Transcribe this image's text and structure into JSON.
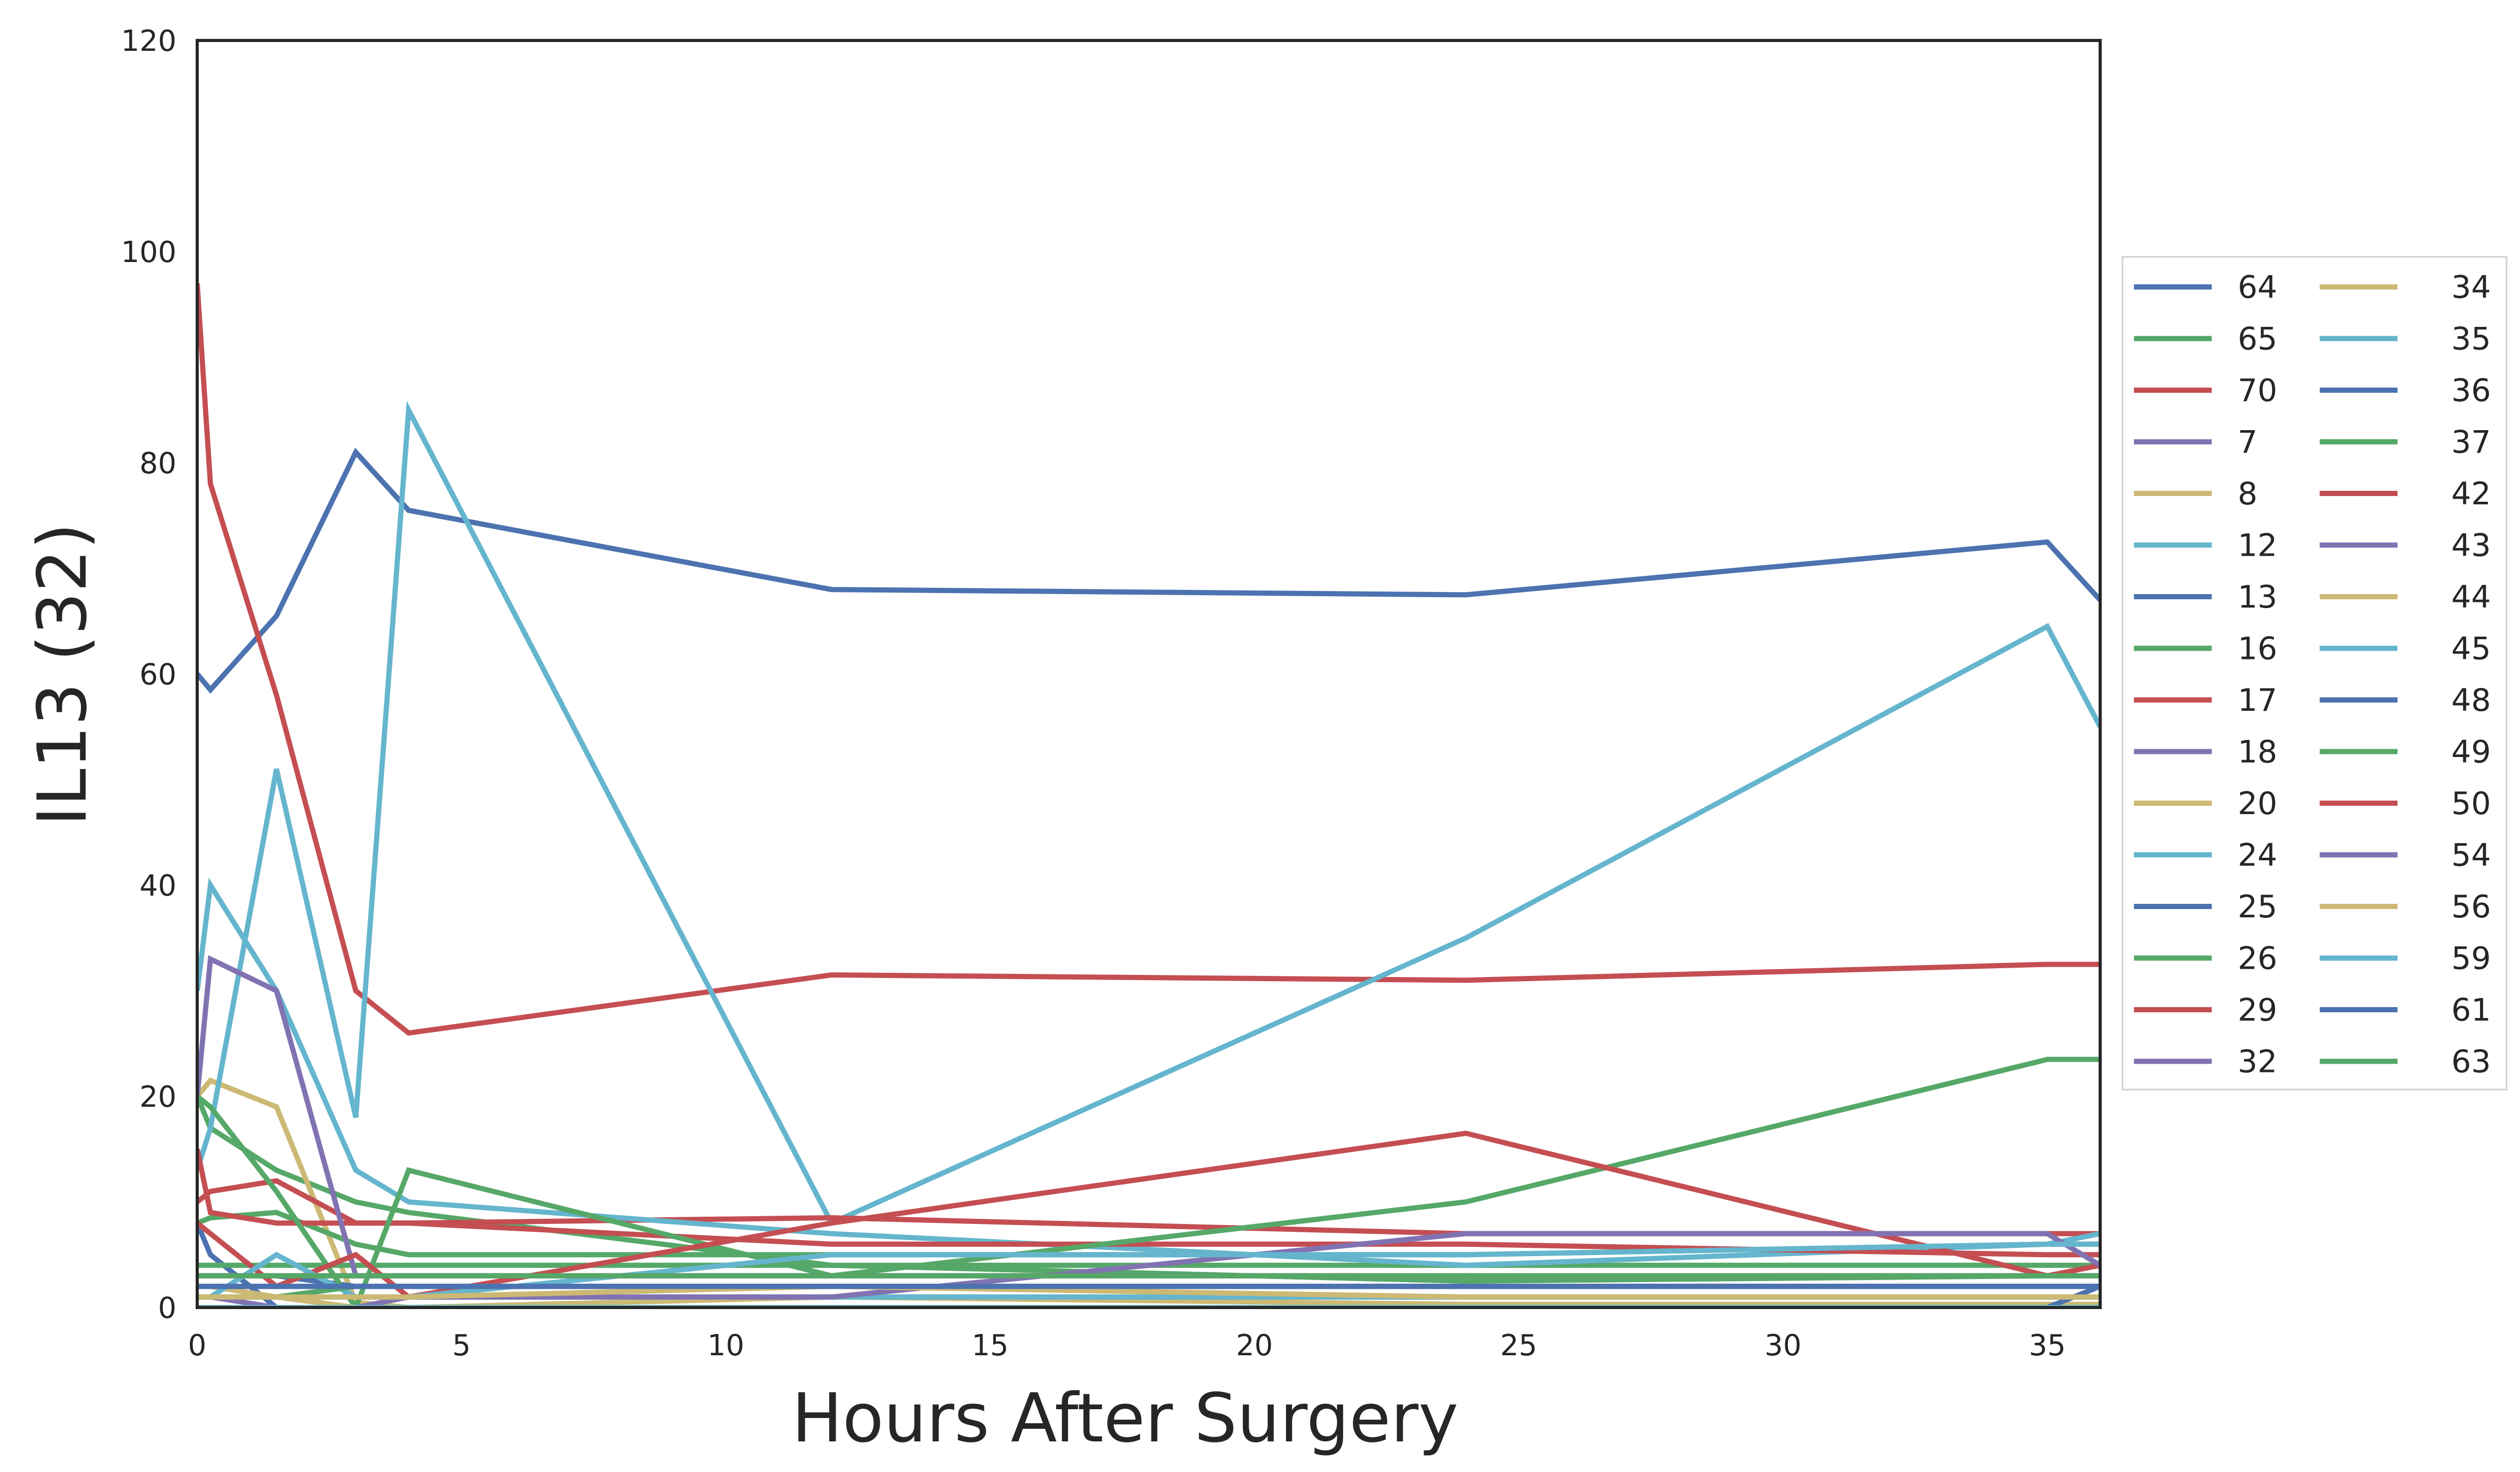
{
  "chart_data": {
    "type": "line",
    "title": "",
    "xlabel": "Hours After Surgery",
    "ylabel": "IL13 (32)",
    "xlim": [
      0,
      36
    ],
    "ylim": [
      0,
      120
    ],
    "xticks": [
      0,
      5,
      10,
      15,
      20,
      25,
      30,
      35
    ],
    "yticks": [
      0,
      20,
      40,
      60,
      80,
      100,
      120
    ],
    "x": [
      0,
      0.25,
      1.5,
      3,
      4,
      12,
      24,
      35,
      36
    ],
    "grid": false,
    "legend": {
      "placement": "right-outside",
      "columns": 2
    },
    "palette": [
      "#4c72b0",
      "#55a868",
      "#c44e52",
      "#8172b2",
      "#ccb974",
      "#64b5cd"
    ],
    "series": [
      {
        "name": "64",
        "color": "#4c72b0",
        "values": [
          60,
          58.5,
          65.5,
          81,
          75.5,
          68,
          67.5,
          72.5,
          67
        ]
      },
      {
        "name": "65",
        "color": "#55a868",
        "values": [
          20,
          17,
          13,
          10,
          9,
          4,
          2.5,
          3,
          3
        ]
      },
      {
        "name": "70",
        "color": "#c44e52",
        "values": [
          97,
          78,
          58,
          30,
          26,
          31.5,
          31,
          32.5,
          32.5
        ]
      },
      {
        "name": "7",
        "color": "#8172b2",
        "values": [
          2,
          2,
          2,
          2,
          2,
          2,
          2,
          2,
          2
        ]
      },
      {
        "name": "8",
        "color": "#ccb974",
        "values": [
          20,
          21.5,
          19,
          0.5,
          0,
          1,
          0.3,
          0.3,
          0.3
        ]
      },
      {
        "name": "12",
        "color": "#64b5cd",
        "values": [
          13,
          17,
          51,
          18,
          85,
          8,
          35,
          64.5,
          55
        ]
      },
      {
        "name": "13",
        "color": "#4c72b0",
        "values": [
          8,
          5,
          0,
          0,
          0,
          0,
          0,
          0,
          0
        ]
      },
      {
        "name": "16",
        "color": "#55a868",
        "values": [
          4,
          4,
          4,
          4,
          4,
          4,
          4,
          4,
          4
        ]
      },
      {
        "name": "17",
        "color": "#c44e52",
        "values": [
          10,
          11,
          12,
          8,
          8,
          8.5,
          7,
          7,
          7
        ]
      },
      {
        "name": "18",
        "color": "#8172b2",
        "values": [
          3,
          3,
          3,
          3,
          3,
          3,
          3,
          3,
          3
        ]
      },
      {
        "name": "20",
        "color": "#ccb974",
        "values": [
          2,
          2,
          1,
          0,
          0,
          0,
          0,
          0,
          0
        ]
      },
      {
        "name": "24",
        "color": "#64b5cd",
        "values": [
          30,
          40,
          30,
          13,
          10,
          7,
          4,
          6,
          7
        ]
      },
      {
        "name": "25",
        "color": "#4c72b0",
        "values": [
          1,
          1,
          1,
          1,
          1,
          1,
          1,
          1,
          1
        ]
      },
      {
        "name": "26",
        "color": "#55a868",
        "values": [
          8,
          8.5,
          9,
          6,
          5,
          5,
          5,
          6,
          6
        ]
      },
      {
        "name": "29",
        "color": "#c44e52",
        "values": [
          15,
          9,
          8,
          8,
          8,
          6,
          6,
          5,
          5
        ]
      },
      {
        "name": "32",
        "color": "#8172b2",
        "values": [
          20,
          33,
          30,
          3,
          3,
          3,
          3,
          3,
          3
        ]
      },
      {
        "name": "34",
        "color": "#ccb974",
        "values": [
          1,
          1,
          1,
          1,
          1,
          1,
          1,
          1,
          1
        ]
      },
      {
        "name": "35",
        "color": "#64b5cd",
        "values": [
          1,
          1,
          1,
          1,
          1,
          1,
          1,
          1,
          1
        ]
      },
      {
        "name": "36",
        "color": "#4c72b0",
        "values": [
          3,
          3,
          3,
          2,
          2,
          2,
          2,
          2,
          2
        ]
      },
      {
        "name": "37",
        "color": "#55a868",
        "values": [
          20,
          19,
          11,
          0,
          13,
          3,
          10,
          23.5,
          23.5
        ]
      },
      {
        "name": "42",
        "color": "#c44e52",
        "values": [
          8,
          7,
          2,
          5,
          1,
          8,
          16.5,
          3,
          4
        ]
      },
      {
        "name": "43",
        "color": "#8172b2",
        "values": [
          1,
          1,
          0,
          0,
          1,
          1,
          7,
          7,
          4
        ]
      },
      {
        "name": "44",
        "color": "#ccb974",
        "values": [
          2,
          2,
          1,
          0,
          0,
          0,
          0,
          0,
          0
        ]
      },
      {
        "name": "45",
        "color": "#64b5cd",
        "values": [
          1,
          1,
          5,
          1,
          1,
          5,
          5,
          6,
          6
        ]
      },
      {
        "name": "48",
        "color": "#4c72b0",
        "values": [
          0,
          0,
          0,
          0,
          0,
          0,
          0,
          0,
          2
        ]
      },
      {
        "name": "49",
        "color": "#55a868",
        "values": [
          1,
          1,
          1,
          2,
          2,
          2,
          2,
          2,
          2
        ]
      },
      {
        "name": "50",
        "color": "#c44e52",
        "values": [
          3,
          3,
          3,
          3,
          3,
          3,
          3,
          3,
          3
        ]
      },
      {
        "name": "54",
        "color": "#8172b2",
        "values": [
          2,
          2,
          2,
          2,
          2,
          2,
          2,
          2,
          2
        ]
      },
      {
        "name": "56",
        "color": "#ccb974",
        "values": [
          1,
          1,
          1,
          1,
          1,
          2,
          1,
          1,
          1
        ]
      },
      {
        "name": "59",
        "color": "#64b5cd",
        "values": [
          0,
          0,
          0,
          0,
          0,
          0,
          0,
          0,
          0
        ]
      },
      {
        "name": "61",
        "color": "#4c72b0",
        "values": [
          2,
          2,
          2,
          2,
          2,
          2,
          2,
          2,
          2
        ]
      },
      {
        "name": "63",
        "color": "#55a868",
        "values": [
          3,
          3,
          3,
          3,
          3,
          3,
          3,
          3,
          3
        ]
      }
    ]
  }
}
